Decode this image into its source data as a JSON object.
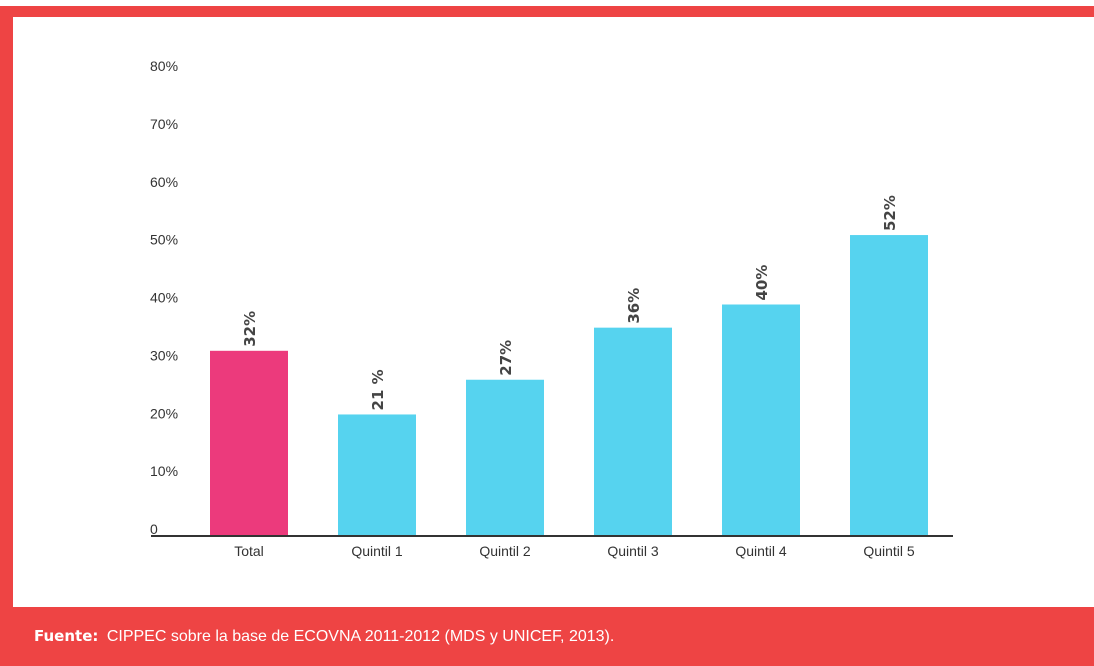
{
  "source": {
    "label": "Fuente:",
    "text": "CIPPEC sobre la base de ECOVNA 2011-2012 (MDS y UNICEF, 2013)."
  },
  "colors": {
    "frame": "#ee4444",
    "total_bar": "#ec3a7c",
    "quintile_bar": "#56d3ef",
    "axis": "#333333"
  },
  "chart_data": {
    "type": "bar",
    "title": "",
    "xlabel": "",
    "ylabel": "",
    "categories": [
      "Total",
      "Quintil 1",
      "Quintil 2",
      "Quintil 3",
      "Quintil 4",
      "Quintil 5"
    ],
    "values": [
      32,
      21,
      27,
      36,
      40,
      52
    ],
    "data_labels": [
      "32%",
      "21 %",
      "27%",
      "36%",
      "40%",
      "52%"
    ],
    "bar_colors": [
      "#ec3a7c",
      "#56d3ef",
      "#56d3ef",
      "#56d3ef",
      "#56d3ef",
      "#56d3ef"
    ],
    "ylim": [
      0,
      80
    ],
    "yticks": [
      0,
      10,
      20,
      30,
      40,
      50,
      60,
      70,
      80
    ],
    "ytick_labels": [
      "0",
      "10%",
      "20%",
      "30%",
      "40%",
      "50%",
      "60%",
      "70%",
      "80%"
    ],
    "grid": false,
    "legend": "none"
  }
}
